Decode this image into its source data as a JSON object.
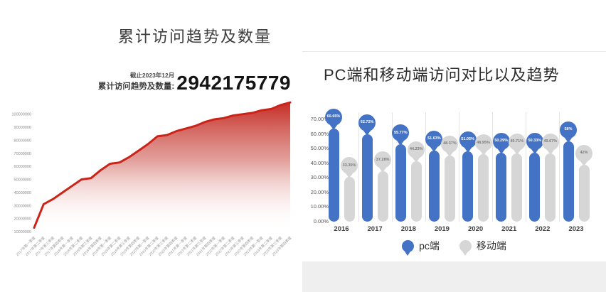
{
  "page": {
    "background": "#ffffff"
  },
  "chart_data": [
    {
      "type": "area",
      "title": "累计访问趋势及数量",
      "annotation": {
        "as_of": "截止2023年12月",
        "caption": "累计访问趋势及数量:",
        "value": "2942175779"
      },
      "x": [
        "2017年第一季度",
        "2017年第二季度",
        "2017年第三季度",
        "2017年第四季度",
        "2018年第一季度",
        "2018年第二季度",
        "2018年第三季度",
        "2018年第四季度",
        "2019年第一季度",
        "2019年第二季度",
        "2019年第三季度",
        "2019年第四季度",
        "2020年第一季度",
        "2020年第二季度",
        "2020年第三季度",
        "2020年第四季度",
        "2021年第一季度",
        "2021年第二季度",
        "2021年第三季度",
        "2021年第四季度",
        "2022年第一季度",
        "2022年第二季度",
        "2022年第三季度",
        "2022年第四季度",
        "2023年第一季度",
        "2023年第二季度",
        "2023年第三季度",
        "2023年第四季度"
      ],
      "values": [
        13000000,
        31000000,
        35000000,
        40000000,
        45000000,
        50000000,
        51000000,
        57000000,
        62000000,
        63000000,
        67000000,
        72000000,
        77000000,
        83000000,
        84000000,
        87000000,
        89000000,
        91000000,
        94000000,
        96000000,
        97000000,
        99000000,
        100000000,
        101000000,
        103000000,
        104000000,
        107000000,
        109000000
      ],
      "y_ticks": [
        "100000000",
        "90000000",
        "80000000",
        "70000000",
        "60000000",
        "50000000",
        "40000000",
        "30000000",
        "20000000",
        "10000000"
      ],
      "ylim": [
        10000000,
        112000000
      ],
      "grid": false,
      "line_color": "#cb2318",
      "fill_top": "#c3251d",
      "fill_mid": "#d1655e"
    },
    {
      "type": "bar",
      "title": "PC端和移动端访问对比以及趋势",
      "categories": [
        "2016",
        "2017",
        "2018",
        "2019",
        "2020",
        "2021",
        "2022",
        "2023"
      ],
      "series": [
        {
          "name": "pc端",
          "color": "#4472c4",
          "text_color": "#ffffff",
          "values": [
            66.65,
            62.72,
            55.77,
            51.63,
            51.05,
            50.29,
            50.33,
            58
          ],
          "labels": [
            "66.65%",
            "62.72%",
            "55.77%",
            "51.63%",
            "51.05%",
            "50.29%",
            "50.33%",
            "58%"
          ]
        },
        {
          "name": "移动端",
          "color": "#d6d6d6",
          "text_color": "#7a7a7a",
          "values": [
            33.35,
            37.28,
            44.23,
            48.37,
            48.95,
            49.71,
            49.67,
            42
          ],
          "labels": [
            "33.35%",
            "37.28%",
            "44.23%",
            "48.37%",
            "48.95%",
            "49.71%",
            "49.67%",
            "42%"
          ]
        }
      ],
      "y_ticks": [
        "70.00%",
        "60.00%",
        "50.00%",
        "40.00%",
        "30.00%",
        "20.00%",
        "10.00%",
        "0.00%"
      ],
      "ylim": [
        0,
        70
      ],
      "legend_position": "bottom"
    }
  ]
}
